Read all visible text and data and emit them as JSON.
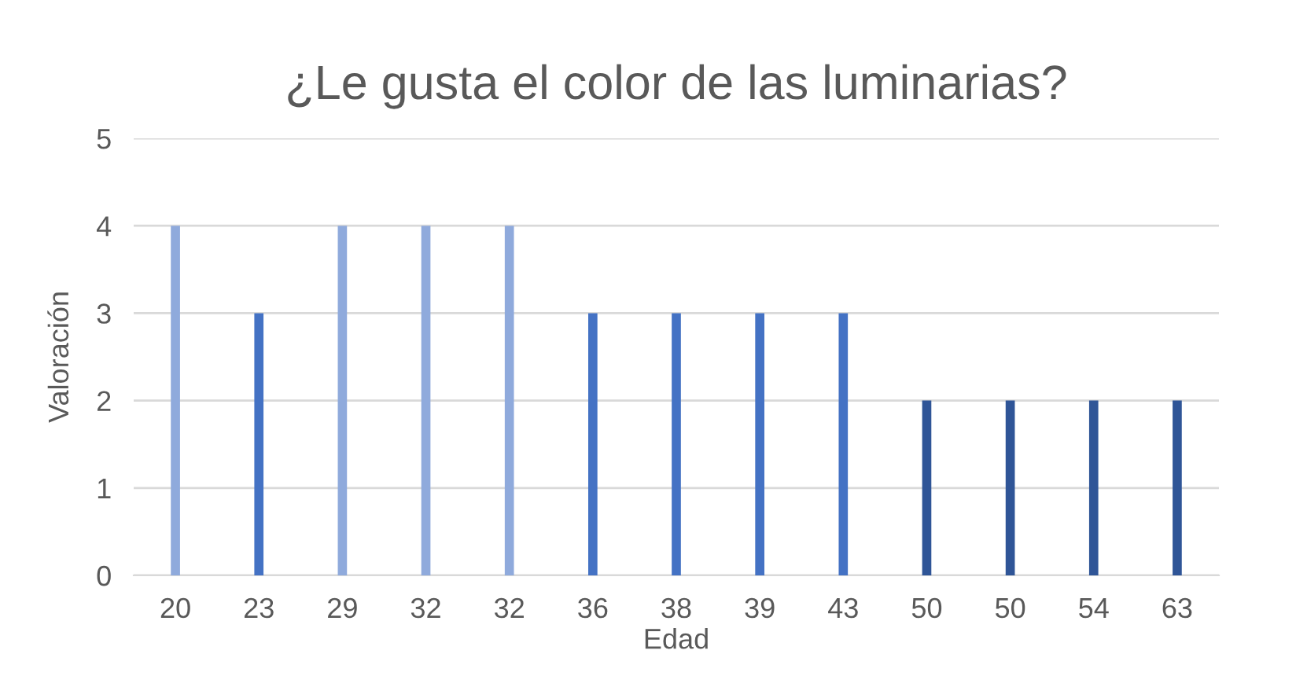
{
  "chart_data": {
    "type": "bar",
    "title": "¿Le gusta el color de las luminarias?",
    "xlabel": "Edad",
    "ylabel": "Valoración",
    "categories": [
      "20",
      "23",
      "29",
      "32",
      "32",
      "36",
      "38",
      "39",
      "43",
      "50",
      "50",
      "54",
      "63"
    ],
    "values": [
      4,
      3,
      4,
      4,
      4,
      3,
      3,
      3,
      3,
      2,
      2,
      2,
      2
    ],
    "colors": [
      "#8faadc",
      "#4472c4",
      "#8faadc",
      "#8faadc",
      "#8faadc",
      "#4472c4",
      "#4472c4",
      "#4472c4",
      "#4472c4",
      "#2f5597",
      "#2f5597",
      "#2f5597",
      "#2f5597"
    ],
    "ylim": [
      0,
      5
    ],
    "yticks": [
      0,
      1,
      2,
      3,
      4,
      5
    ],
    "grid": "y"
  }
}
